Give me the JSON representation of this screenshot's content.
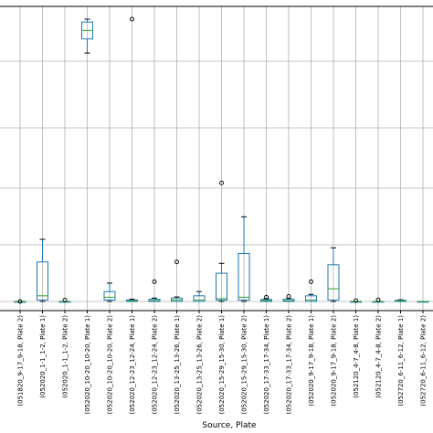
{
  "chart_data": {
    "type": "box",
    "title": "",
    "xlabel": "Source, Plate",
    "ylabel": "",
    "grid": true,
    "ylim": [
      0,
      100
    ],
    "colors": {
      "box": "#1f77b4",
      "median": "#2ca02c",
      "whisker": "#1f77b4",
      "flier": "#000000",
      "grid": "#b0b0b0"
    },
    "categories": [
      "(051820_9-17_9-18, Plate 2)",
      "(052020_1-1_1-2, Plate 1)",
      "(052020_1-1_1-2, Plate 2)",
      "(052020_10-20_10-20, Plate 1)",
      "(052020_10-20_10-20, Plate 2)",
      "(052020_12-23_12-24, Plate 1)",
      "(052020_12-23_12-24, Plate 2)",
      "(052020_13-25_13-26, Plate 1)",
      "(052020_13-25_13-26, Plate 2)",
      "(052020_15-29_15-30, Plate 1)",
      "(052020_15-29_15-30, Plate 2)",
      "(052020_17-33_17-34, Plate 1)",
      "(052020_17-33_17-34, Plate 2)",
      "(052020_9-17_9-18, Plate 1)",
      "(052020_9-17_9-18, Plate 2)",
      "(052120_4-7_4-8, Plate 1)",
      "(052120_4-7_4-8, Plate 2)",
      "(052720_6-11_6-12, Plate 1)",
      "(052720_6-11_6-12, Plate 2)"
    ],
    "boxes": [
      {
        "whislo": 0,
        "q1": 0,
        "med": 0,
        "q3": 0,
        "whishi": 0,
        "fliers": [
          0
        ]
      },
      {
        "whislo": 0,
        "q1": 0.5,
        "med": 2,
        "q3": 14,
        "whishi": 22,
        "fliers": []
      },
      {
        "whislo": 0,
        "q1": 0,
        "med": 0,
        "q3": 0,
        "whishi": 0,
        "fliers": [
          0.5
        ]
      },
      {
        "whislo": 88,
        "q1": 93,
        "med": 96,
        "q3": 99,
        "whishi": 100,
        "fliers": []
      },
      {
        "whislo": 0,
        "q1": 0.5,
        "med": 1.5,
        "q3": 3.5,
        "whishi": 6.5,
        "fliers": []
      },
      {
        "whislo": 0,
        "q1": 0,
        "med": 0.2,
        "q3": 0.5,
        "whishi": 0.8,
        "fliers": [
          100
        ]
      },
      {
        "whislo": 0,
        "q1": 0,
        "med": 0.3,
        "q3": 0.8,
        "whishi": 1.2,
        "fliers": [
          7
        ]
      },
      {
        "whislo": 0,
        "q1": 0,
        "med": 0.5,
        "q3": 1.2,
        "whishi": 1.6,
        "fliers": [
          14
        ]
      },
      {
        "whislo": 0,
        "q1": 0,
        "med": 0.5,
        "q3": 2,
        "whishi": 3.5,
        "fliers": []
      },
      {
        "whislo": 0,
        "q1": 0.5,
        "med": 1,
        "q3": 10,
        "whishi": 13.5,
        "fliers": [
          42
        ]
      },
      {
        "whislo": 0,
        "q1": 0.5,
        "med": 1.5,
        "q3": 17,
        "whishi": 30,
        "fliers": []
      },
      {
        "whislo": 0,
        "q1": 0,
        "med": 0.3,
        "q3": 0.7,
        "whishi": 1,
        "fliers": [
          1.5
        ]
      },
      {
        "whislo": 0,
        "q1": 0,
        "med": 0.3,
        "q3": 0.8,
        "whishi": 1,
        "fliers": [
          1.8
        ]
      },
      {
        "whislo": 0,
        "q1": 0,
        "med": 0.5,
        "q3": 2,
        "whishi": 2.5,
        "fliers": [
          7
        ]
      },
      {
        "whislo": 0,
        "q1": 0.5,
        "med": 4.5,
        "q3": 13,
        "whishi": 19,
        "fliers": []
      },
      {
        "whislo": 0,
        "q1": 0,
        "med": 0,
        "q3": 0,
        "whishi": 0,
        "fliers": [
          0.3
        ]
      },
      {
        "whislo": 0,
        "q1": 0,
        "med": 0,
        "q3": 0,
        "whishi": 0,
        "fliers": [
          0.6
        ]
      },
      {
        "whislo": 0,
        "q1": 0,
        "med": 0.2,
        "q3": 0.4,
        "whishi": 0.6,
        "fliers": []
      },
      {
        "whislo": 0,
        "q1": 0,
        "med": 0,
        "q3": 0,
        "whishi": 0,
        "fliers": []
      }
    ]
  }
}
